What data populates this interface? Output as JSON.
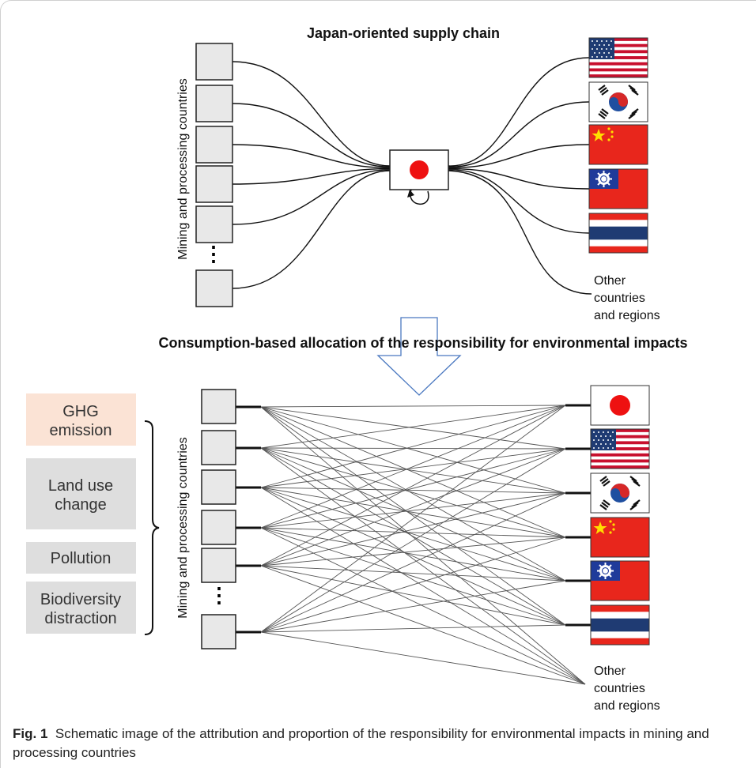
{
  "top": {
    "title": "Japan-oriented supply chain",
    "source_label": "Mining and processing countries",
    "ellipsis": "⋮",
    "other_line1": "Other",
    "other_line2": "countries",
    "other_line3": "and regions"
  },
  "bottom": {
    "title": "Consumption-based allocation of the responsibility for environmental impacts",
    "source_label": "Mining and processing countries",
    "ellipsis": "⋮",
    "other_line1": "Other",
    "other_line2": "countries",
    "other_line3": "and regions",
    "impacts": [
      {
        "line1": "GHG",
        "line2": "emission",
        "color": "#fbe3d5"
      },
      {
        "line1": "Land use",
        "line2": "change",
        "color": "#dedede"
      },
      {
        "line1": "Pollution",
        "line2": "",
        "color": "#dedede"
      },
      {
        "line1": "Biodiversity",
        "line2": "distraction",
        "color": "#dedede"
      }
    ]
  },
  "flags": {
    "top": [
      "usa-flag-icon",
      "south-korea-flag-icon",
      "china-flag-icon",
      "taiwan-flag-icon",
      "thailand-flag-icon"
    ],
    "bottom": [
      "japan-flag-icon",
      "usa-flag-icon",
      "south-korea-flag-icon",
      "china-flag-icon",
      "taiwan-flag-icon",
      "thailand-flag-icon"
    ]
  },
  "colors": {
    "box_fill": "#e8e8e8",
    "ghg_fill": "#fbe3d5",
    "gray_fill": "#dedede",
    "japan_red": "#ee1111",
    "flag_red": "#e8261c",
    "flag_blue": "#1f3b73",
    "arrow_blue": "#4a78c0"
  },
  "caption": {
    "label": "Fig. 1",
    "text": "Schematic image of the attribution and proportion of the responsibility for environmental impacts in mining and processing countries"
  }
}
